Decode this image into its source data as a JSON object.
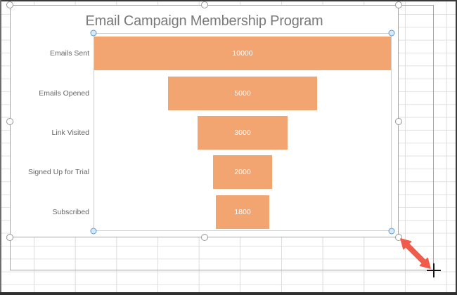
{
  "chart_data": {
    "type": "funnel",
    "title": "Email Campaign Membership Program",
    "categories": [
      "Emails Sent",
      "Emails Opened",
      "Link Visited",
      "Signed Up for Trial",
      "Subscribed"
    ],
    "values": [
      10000,
      5000,
      3000,
      2000,
      1800
    ],
    "data_labels": [
      "10000",
      "5000",
      "3000",
      "2000",
      "1800"
    ],
    "max_value": 10000,
    "legend": "none",
    "bar_color": "#f2a471",
    "colors": {
      "title": "#7a7a7a",
      "category_labels": "#666666",
      "data_labels": "#ffffff",
      "selection_border": "#a6a6a6",
      "plot_handle_blue": "#5b9bd5",
      "resize_arrow": "#f15b4b",
      "crosshair": "#151515"
    }
  },
  "selection": {
    "cursor": "crosshair",
    "chart_handle_positions": [
      "top-left",
      "top-center",
      "top-right",
      "mid-left",
      "mid-right",
      "bottom-left",
      "bottom-center",
      "bottom-right"
    ],
    "plot_handle_positions": [
      "top-left",
      "top-right",
      "bottom-left",
      "bottom-right"
    ]
  }
}
